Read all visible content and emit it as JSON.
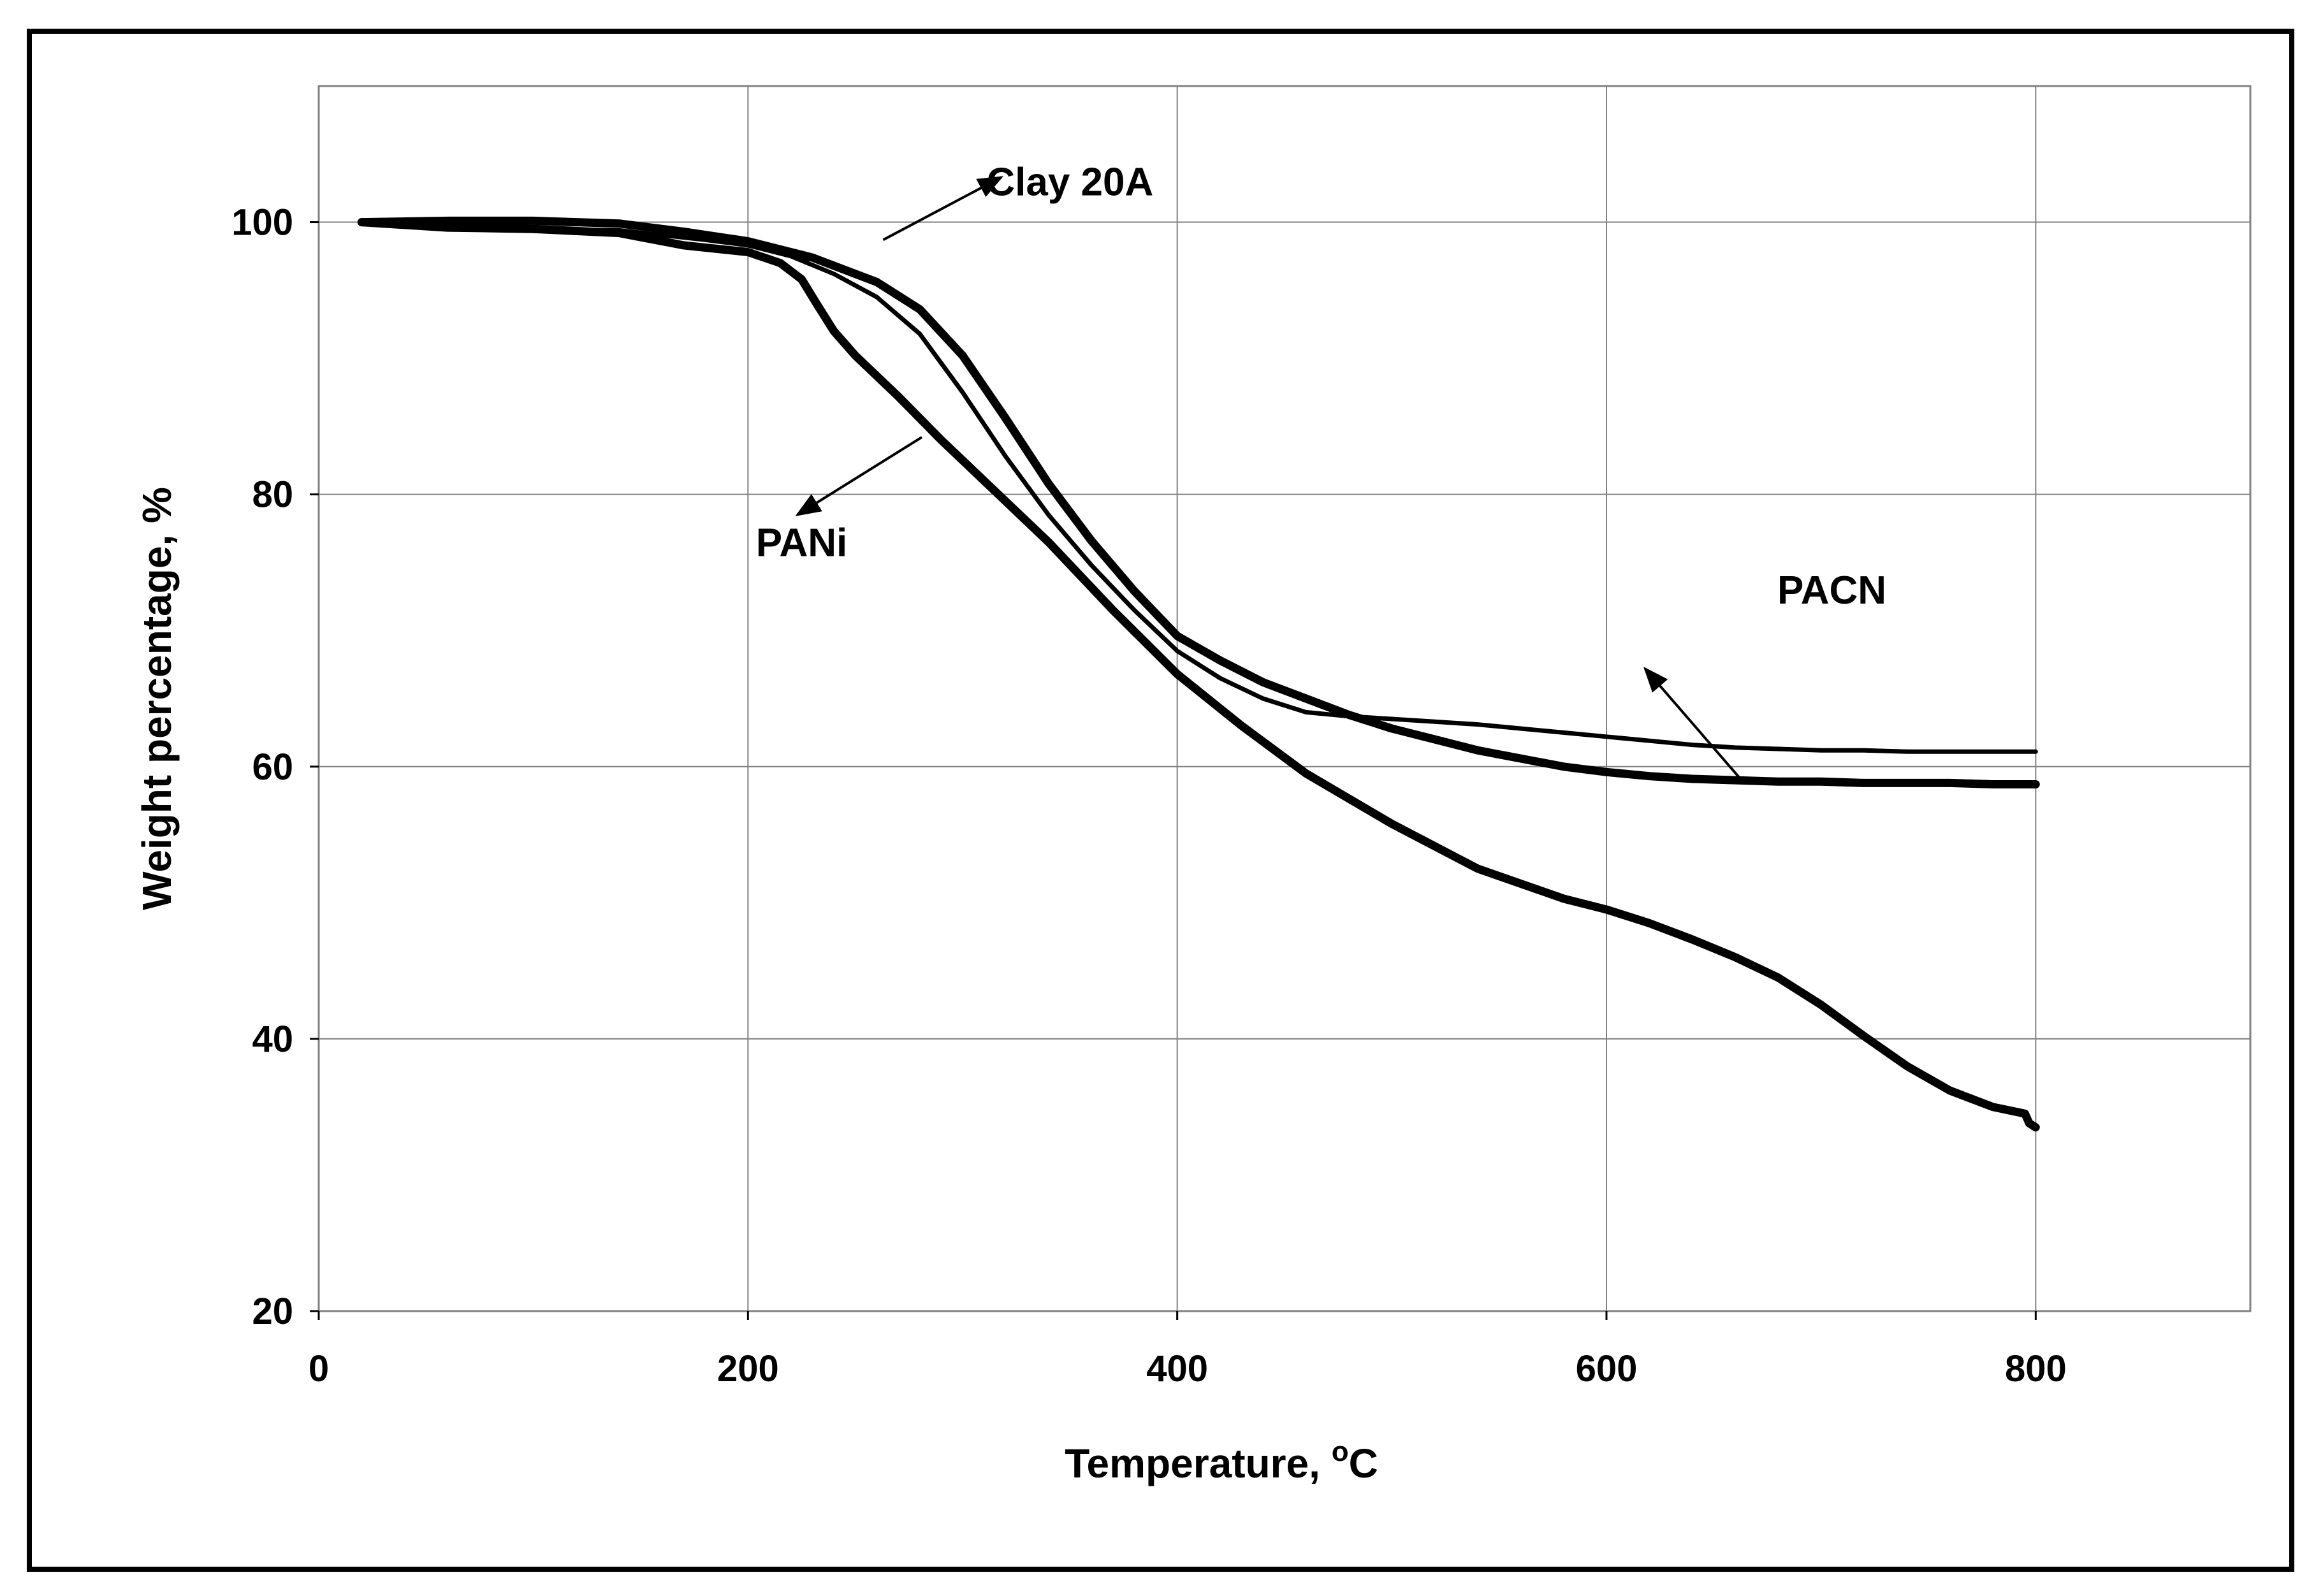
{
  "chart_data": {
    "type": "line",
    "title": "",
    "xlabel": "Temperature, ",
    "xlabel_superscript": "o",
    "xlabel_unit": "C",
    "ylabel": "Weight percentage, %",
    "xlim": [
      0,
      900
    ],
    "ylim": [
      20,
      110
    ],
    "xticks": [
      0,
      200,
      400,
      600,
      800
    ],
    "yticks": [
      20,
      40,
      60,
      80,
      100
    ],
    "grid": true,
    "legend": "none",
    "series": [
      {
        "name": "Clay 20A",
        "x": [
          20,
          60,
          100,
          140,
          180,
          200,
          220,
          240,
          260,
          280,
          300,
          320,
          340,
          360,
          380,
          400,
          420,
          440,
          460,
          480,
          500,
          520,
          540,
          560,
          580,
          600,
          620,
          640,
          660,
          680,
          700,
          720,
          740,
          760,
          780,
          800
        ],
        "y": [
          100,
          99.6,
          99.5,
          99.4,
          98.7,
          98.3,
          97.5,
          96.2,
          94.5,
          91.8,
          87.5,
          82.8,
          78.5,
          74.8,
          71.5,
          68.5,
          66.5,
          65.0,
          64.0,
          63.7,
          63.5,
          63.3,
          63.1,
          62.8,
          62.5,
          62.2,
          61.9,
          61.6,
          61.4,
          61.3,
          61.2,
          61.2,
          61.1,
          61.1,
          61.1,
          61.1
        ]
      },
      {
        "name": "PANi",
        "x": [
          20,
          60,
          100,
          140,
          170,
          200,
          215,
          225,
          232,
          240,
          250,
          270,
          290,
          310,
          340,
          370,
          400,
          430,
          460,
          500,
          540,
          580,
          600,
          620,
          640,
          660,
          680,
          700,
          720,
          740,
          760,
          780,
          795,
          797,
          800
        ],
        "y": [
          100,
          99.6,
          99.5,
          99.2,
          98.3,
          97.8,
          97.0,
          95.8,
          94.0,
          92.0,
          90.2,
          87.2,
          84.0,
          81.0,
          76.5,
          71.5,
          66.8,
          63.0,
          59.5,
          55.8,
          52.5,
          50.3,
          49.5,
          48.5,
          47.3,
          46.0,
          44.5,
          42.5,
          40.2,
          38.0,
          36.2,
          35.0,
          34.5,
          33.8,
          33.5
        ]
      },
      {
        "name": "PACN",
        "x": [
          20,
          60,
          100,
          140,
          170,
          200,
          230,
          260,
          280,
          300,
          320,
          340,
          360,
          380,
          400,
          420,
          440,
          460,
          480,
          500,
          520,
          540,
          560,
          580,
          600,
          620,
          640,
          660,
          680,
          700,
          720,
          740,
          760,
          780,
          800
        ],
        "y": [
          100,
          100.1,
          100.1,
          99.9,
          99.3,
          98.6,
          97.4,
          95.6,
          93.6,
          90.2,
          85.6,
          80.8,
          76.6,
          72.9,
          69.6,
          67.8,
          66.2,
          65.0,
          63.8,
          62.8,
          62.0,
          61.2,
          60.6,
          60.0,
          59.6,
          59.3,
          59.1,
          59.0,
          58.9,
          58.9,
          58.8,
          58.8,
          58.8,
          58.7,
          58.7
        ]
      }
    ],
    "annotations": [
      {
        "text": "Clay 20A",
        "data_x": 350,
        "data_y": 103,
        "arrow_from": [
          263,
          98.7
        ],
        "arrow_to": [
          318,
          103.3
        ]
      },
      {
        "text": "PANi",
        "data_x": 225,
        "data_y": 76.5,
        "arrow_from": [
          281,
          84.2
        ],
        "arrow_to": [
          223,
          78.5
        ]
      },
      {
        "text": "PACN",
        "data_x": 705,
        "data_y": 73,
        "arrow_from": [
          663,
          59
        ],
        "arrow_to": [
          618,
          67.2
        ]
      }
    ]
  }
}
